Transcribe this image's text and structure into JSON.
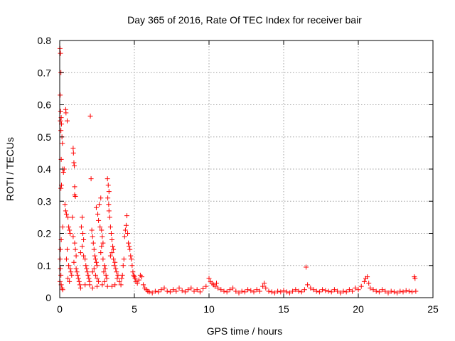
{
  "chart_data": {
    "type": "scatter",
    "title": "Day 365 of 2016, Rate Of TEC Index for receiver bair",
    "xlabel": "GPS time / hours",
    "ylabel": "ROTI / TECUs",
    "xlim": [
      0,
      25
    ],
    "ylim": [
      0,
      0.8
    ],
    "xticks": [
      0,
      5,
      10,
      15,
      20,
      25
    ],
    "xtick_labels": [
      "0",
      "5",
      "10",
      "15",
      "20",
      "25"
    ],
    "yticks": [
      0,
      0.1,
      0.2,
      0.3,
      0.4,
      0.5,
      0.6,
      0.7,
      0.8
    ],
    "ytick_labels": [
      "0",
      "0.1",
      "0.2",
      "0.3",
      "0.4",
      "0.5",
      "0.6",
      "0.7",
      "0.8"
    ],
    "grid": true,
    "marker": "+",
    "color": "#ff0000",
    "series": [
      {
        "name": "ROTI",
        "points": [
          [
            0.02,
            0.775
          ],
          [
            0.05,
            0.76
          ],
          [
            0.08,
            0.7
          ],
          [
            0.03,
            0.63
          ],
          [
            0.06,
            0.58
          ],
          [
            0.1,
            0.56
          ],
          [
            0.04,
            0.55
          ],
          [
            0.12,
            0.54
          ],
          [
            0.08,
            0.52
          ],
          [
            0.15,
            0.5
          ],
          [
            0.18,
            0.48
          ],
          [
            0.1,
            0.43
          ],
          [
            0.2,
            0.4
          ],
          [
            0.25,
            0.39
          ],
          [
            0.12,
            0.35
          ],
          [
            0.08,
            0.34
          ],
          [
            0.3,
            0.4
          ],
          [
            0.35,
            0.29
          ],
          [
            0.4,
            0.27
          ],
          [
            0.45,
            0.26
          ],
          [
            0.2,
            0.22
          ],
          [
            0.1,
            0.18
          ],
          [
            0.05,
            0.15
          ],
          [
            0.03,
            0.12
          ],
          [
            0.05,
            0.09
          ],
          [
            0.08,
            0.07
          ],
          [
            0.02,
            0.05
          ],
          [
            0.1,
            0.04
          ],
          [
            0.15,
            0.03
          ],
          [
            0.2,
            0.025
          ],
          [
            0.4,
            0.585
          ],
          [
            0.42,
            0.575
          ],
          [
            0.5,
            0.55
          ],
          [
            0.55,
            0.25
          ],
          [
            0.6,
            0.22
          ],
          [
            0.65,
            0.21
          ],
          [
            0.7,
            0.2
          ],
          [
            0.5,
            0.15
          ],
          [
            0.45,
            0.12
          ],
          [
            0.6,
            0.1
          ],
          [
            0.7,
            0.09
          ],
          [
            0.75,
            0.08
          ],
          [
            0.8,
            0.07
          ],
          [
            0.55,
            0.06
          ],
          [
            0.65,
            0.05
          ],
          [
            0.9,
            0.465
          ],
          [
            0.92,
            0.45
          ],
          [
            0.95,
            0.42
          ],
          [
            0.98,
            0.41
          ],
          [
            1.0,
            0.345
          ],
          [
            1.0,
            0.32
          ],
          [
            1.05,
            0.315
          ],
          [
            0.85,
            0.25
          ],
          [
            0.9,
            0.19
          ],
          [
            1.0,
            0.17
          ],
          [
            1.05,
            0.15
          ],
          [
            1.1,
            0.13
          ],
          [
            0.95,
            0.11
          ],
          [
            1.1,
            0.09
          ],
          [
            1.15,
            0.08
          ],
          [
            1.2,
            0.07
          ],
          [
            1.25,
            0.06
          ],
          [
            1.3,
            0.05
          ],
          [
            1.35,
            0.04
          ],
          [
            1.4,
            0.03
          ],
          [
            1.5,
            0.25
          ],
          [
            1.45,
            0.22
          ],
          [
            1.55,
            0.2
          ],
          [
            1.6,
            0.18
          ],
          [
            1.5,
            0.16
          ],
          [
            1.4,
            0.14
          ],
          [
            1.6,
            0.13
          ],
          [
            1.7,
            0.12
          ],
          [
            1.75,
            0.1
          ],
          [
            1.8,
            0.09
          ],
          [
            1.85,
            0.08
          ],
          [
            1.9,
            0.07
          ],
          [
            1.95,
            0.06
          ],
          [
            2.0,
            0.05
          ],
          [
            1.7,
            0.04
          ],
          [
            2.05,
            0.565
          ],
          [
            2.1,
            0.37
          ],
          [
            2.15,
            0.21
          ],
          [
            2.2,
            0.19
          ],
          [
            2.25,
            0.17
          ],
          [
            2.3,
            0.15
          ],
          [
            2.35,
            0.13
          ],
          [
            2.4,
            0.12
          ],
          [
            2.45,
            0.11
          ],
          [
            2.5,
            0.1
          ],
          [
            2.3,
            0.09
          ],
          [
            2.2,
            0.08
          ],
          [
            2.4,
            0.07
          ],
          [
            2.5,
            0.06
          ],
          [
            2.6,
            0.05
          ],
          [
            2.0,
            0.04
          ],
          [
            2.2,
            0.03
          ],
          [
            2.5,
            0.035
          ],
          [
            2.45,
            0.28
          ],
          [
            2.55,
            0.26
          ],
          [
            2.6,
            0.24
          ],
          [
            2.7,
            0.22
          ],
          [
            2.65,
            0.29
          ],
          [
            2.75,
            0.31
          ],
          [
            2.8,
            0.21
          ],
          [
            2.85,
            0.19
          ],
          [
            2.9,
            0.17
          ],
          [
            2.8,
            0.16
          ],
          [
            2.75,
            0.14
          ],
          [
            2.9,
            0.12
          ],
          [
            3.0,
            0.1
          ],
          [
            3.05,
            0.09
          ],
          [
            2.95,
            0.08
          ],
          [
            3.1,
            0.07
          ],
          [
            3.15,
            0.06
          ],
          [
            3.0,
            0.05
          ],
          [
            2.85,
            0.04
          ],
          [
            3.2,
            0.035
          ],
          [
            3.2,
            0.37
          ],
          [
            3.25,
            0.35
          ],
          [
            3.3,
            0.33
          ],
          [
            3.22,
            0.31
          ],
          [
            3.28,
            0.29
          ],
          [
            3.3,
            0.27
          ],
          [
            3.35,
            0.25
          ],
          [
            3.4,
            0.22
          ],
          [
            3.45,
            0.2
          ],
          [
            3.5,
            0.18
          ],
          [
            3.55,
            0.16
          ],
          [
            3.6,
            0.15
          ],
          [
            3.5,
            0.14
          ],
          [
            3.4,
            0.13
          ],
          [
            3.6,
            0.12
          ],
          [
            3.7,
            0.11
          ],
          [
            3.65,
            0.1
          ],
          [
            3.75,
            0.09
          ],
          [
            3.8,
            0.08
          ],
          [
            3.9,
            0.07
          ],
          [
            3.85,
            0.06
          ],
          [
            4.0,
            0.05
          ],
          [
            3.7,
            0.04
          ],
          [
            3.5,
            0.035
          ],
          [
            4.1,
            0.04
          ],
          [
            4.15,
            0.06
          ],
          [
            4.2,
            0.07
          ],
          [
            4.25,
            0.1
          ],
          [
            4.3,
            0.12
          ],
          [
            4.35,
            0.19
          ],
          [
            4.4,
            0.21
          ],
          [
            4.45,
            0.225
          ],
          [
            4.5,
            0.255
          ],
          [
            4.55,
            0.2
          ],
          [
            4.6,
            0.17
          ],
          [
            4.65,
            0.16
          ],
          [
            4.7,
            0.15
          ],
          [
            4.75,
            0.13
          ],
          [
            4.8,
            0.12
          ],
          [
            4.85,
            0.1
          ],
          [
            4.9,
            0.08
          ],
          [
            4.95,
            0.07
          ],
          [
            5.0,
            0.065
          ],
          [
            5.05,
            0.06
          ],
          [
            5.1,
            0.05
          ],
          [
            5.2,
            0.045
          ],
          [
            5.3,
            0.055
          ],
          [
            5.4,
            0.07
          ],
          [
            5.5,
            0.065
          ],
          [
            5.6,
            0.04
          ],
          [
            5.7,
            0.03
          ],
          [
            5.8,
            0.025
          ],
          [
            5.9,
            0.02
          ],
          [
            6.0,
            0.018
          ],
          [
            6.2,
            0.015
          ],
          [
            6.4,
            0.02
          ],
          [
            6.6,
            0.018
          ],
          [
            6.8,
            0.025
          ],
          [
            7.0,
            0.03
          ],
          [
            7.2,
            0.02
          ],
          [
            7.4,
            0.018
          ],
          [
            7.6,
            0.025
          ],
          [
            7.8,
            0.02
          ],
          [
            8.0,
            0.03
          ],
          [
            8.2,
            0.022
          ],
          [
            8.4,
            0.018
          ],
          [
            8.6,
            0.025
          ],
          [
            8.8,
            0.03
          ],
          [
            9.0,
            0.02
          ],
          [
            9.2,
            0.025
          ],
          [
            9.4,
            0.018
          ],
          [
            9.6,
            0.028
          ],
          [
            9.8,
            0.035
          ],
          [
            10.0,
            0.06
          ],
          [
            10.1,
            0.05
          ],
          [
            10.2,
            0.045
          ],
          [
            10.3,
            0.04
          ],
          [
            10.4,
            0.035
          ],
          [
            10.5,
            0.045
          ],
          [
            10.6,
            0.03
          ],
          [
            10.8,
            0.025
          ],
          [
            11.0,
            0.02
          ],
          [
            11.2,
            0.018
          ],
          [
            11.4,
            0.025
          ],
          [
            11.6,
            0.03
          ],
          [
            11.8,
            0.02
          ],
          [
            12.0,
            0.015
          ],
          [
            12.2,
            0.02
          ],
          [
            12.4,
            0.018
          ],
          [
            12.6,
            0.025
          ],
          [
            12.8,
            0.022
          ],
          [
            13.0,
            0.018
          ],
          [
            13.2,
            0.025
          ],
          [
            13.4,
            0.02
          ],
          [
            13.6,
            0.035
          ],
          [
            13.7,
            0.045
          ],
          [
            13.8,
            0.03
          ],
          [
            14.0,
            0.02
          ],
          [
            14.2,
            0.018
          ],
          [
            14.4,
            0.015
          ],
          [
            14.6,
            0.02
          ],
          [
            14.8,
            0.018
          ],
          [
            15.0,
            0.022
          ],
          [
            15.2,
            0.018
          ],
          [
            15.4,
            0.015
          ],
          [
            15.6,
            0.02
          ],
          [
            15.8,
            0.025
          ],
          [
            16.0,
            0.02
          ],
          [
            16.2,
            0.018
          ],
          [
            16.4,
            0.025
          ],
          [
            16.5,
            0.095
          ],
          [
            16.6,
            0.04
          ],
          [
            16.8,
            0.03
          ],
          [
            17.0,
            0.025
          ],
          [
            17.2,
            0.02
          ],
          [
            17.4,
            0.018
          ],
          [
            17.6,
            0.025
          ],
          [
            17.8,
            0.022
          ],
          [
            18.0,
            0.02
          ],
          [
            18.2,
            0.018
          ],
          [
            18.4,
            0.025
          ],
          [
            18.6,
            0.02
          ],
          [
            18.8,
            0.015
          ],
          [
            19.0,
            0.02
          ],
          [
            19.2,
            0.018
          ],
          [
            19.4,
            0.025
          ],
          [
            19.6,
            0.02
          ],
          [
            19.8,
            0.03
          ],
          [
            20.0,
            0.025
          ],
          [
            20.2,
            0.035
          ],
          [
            20.4,
            0.05
          ],
          [
            20.5,
            0.06
          ],
          [
            20.6,
            0.065
          ],
          [
            20.7,
            0.045
          ],
          [
            20.8,
            0.03
          ],
          [
            21.0,
            0.025
          ],
          [
            21.2,
            0.02
          ],
          [
            21.4,
            0.018
          ],
          [
            21.6,
            0.025
          ],
          [
            21.8,
            0.02
          ],
          [
            22.0,
            0.015
          ],
          [
            22.2,
            0.02
          ],
          [
            22.4,
            0.018
          ],
          [
            22.6,
            0.015
          ],
          [
            22.8,
            0.02
          ],
          [
            23.0,
            0.018
          ],
          [
            23.2,
            0.022
          ],
          [
            23.4,
            0.02
          ],
          [
            23.6,
            0.018
          ],
          [
            23.75,
            0.065
          ],
          [
            23.8,
            0.06
          ],
          [
            23.85,
            0.02
          ]
        ]
      }
    ]
  }
}
